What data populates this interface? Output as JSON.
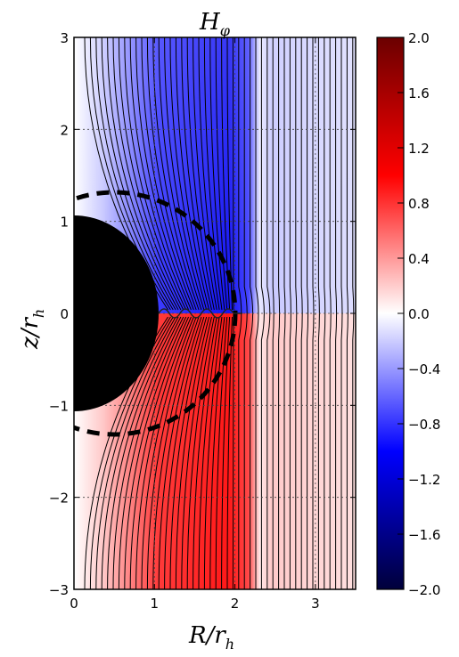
{
  "chart_data": {
    "type": "heatmap",
    "title": "H_φ",
    "title_main": "H",
    "title_sub": "φ",
    "xlabel_main": "R/r",
    "xlabel_sub": "h",
    "ylabel_main": "z/r",
    "ylabel_sub": "h",
    "xlim": [
      0,
      3.5
    ],
    "ylim": [
      -3,
      3
    ],
    "xticks": [
      "0",
      "1",
      "2",
      "3"
    ],
    "yticks": [
      "3",
      "2",
      "1",
      "0",
      "−1",
      "−2",
      "−3"
    ],
    "colorbar": {
      "min": -2.0,
      "max": 2.0,
      "colormap": "seismic",
      "ticks": [
        "2.0",
        "1.6",
        "1.2",
        "0.8",
        "0.4",
        "0.0",
        "−0.4",
        "−0.8",
        "−1.2",
        "−1.6",
        "−2.0"
      ]
    },
    "field_regions": [
      {
        "region": "z>0, R<2",
        "value": -1.4,
        "note": "blue"
      },
      {
        "region": "z<0, R<2",
        "value": 1.4,
        "note": "red"
      },
      {
        "region": "R>2.3",
        "value": 0.0,
        "note": "near zero"
      }
    ],
    "black_sphere_radius": 1.05,
    "dashed_circle": {
      "radius": 1.5,
      "center_x": 0.5
    },
    "grid": "dotted"
  }
}
